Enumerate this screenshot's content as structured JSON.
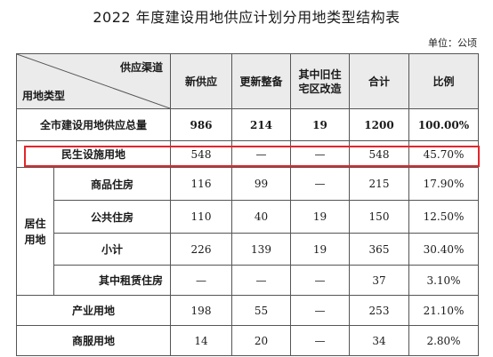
{
  "title": "2022 年度建设用地供应计划分用地类型结构表",
  "unit": "单位：公顷",
  "header": {
    "diag_top": "供应渠道",
    "diag_bottom": "用地类型",
    "new_supply": "新供应",
    "renewal": "更新整备",
    "old_village_line1": "其中旧住",
    "old_village_line2": "宅区改造",
    "total": "合计",
    "ratio": "比例"
  },
  "rows": {
    "grand_total": {
      "label": "全市建设用地供应总量",
      "new": "986",
      "renewal": "214",
      "old": "19",
      "total": "1200",
      "ratio": "100.00%"
    },
    "livelihood": {
      "label": "民生设施用地",
      "new": "548",
      "renewal": "—",
      "old": "—",
      "total": "548",
      "ratio": "45.70%"
    },
    "residential_group": "居住用地",
    "commercial_housing": {
      "label": "商品住房",
      "new": "116",
      "renewal": "99",
      "old": "—",
      "total": "215",
      "ratio": "17.90%"
    },
    "public_housing": {
      "label": "公共住房",
      "new": "110",
      "renewal": "40",
      "old": "19",
      "total": "150",
      "ratio": "12.50%"
    },
    "subtotal": {
      "label": "小计",
      "new": "226",
      "renewal": "139",
      "old": "19",
      "total": "365",
      "ratio": "30.40%"
    },
    "rental_housing": {
      "label": "其中租赁住房",
      "new": "—",
      "renewal": "—",
      "old": "—",
      "total": "37",
      "ratio": "3.10%"
    },
    "industrial": {
      "label": "产业用地",
      "new": "198",
      "renewal": "55",
      "old": "—",
      "total": "253",
      "ratio": "21.10%"
    },
    "commercial_service": {
      "label": "商服用地",
      "new": "14",
      "renewal": "20",
      "old": "—",
      "total": "34",
      "ratio": "2.80%"
    }
  },
  "colors": {
    "highlight_border": "#e3262b",
    "header_bg": "#ebebeb",
    "grid": "#555555"
  }
}
